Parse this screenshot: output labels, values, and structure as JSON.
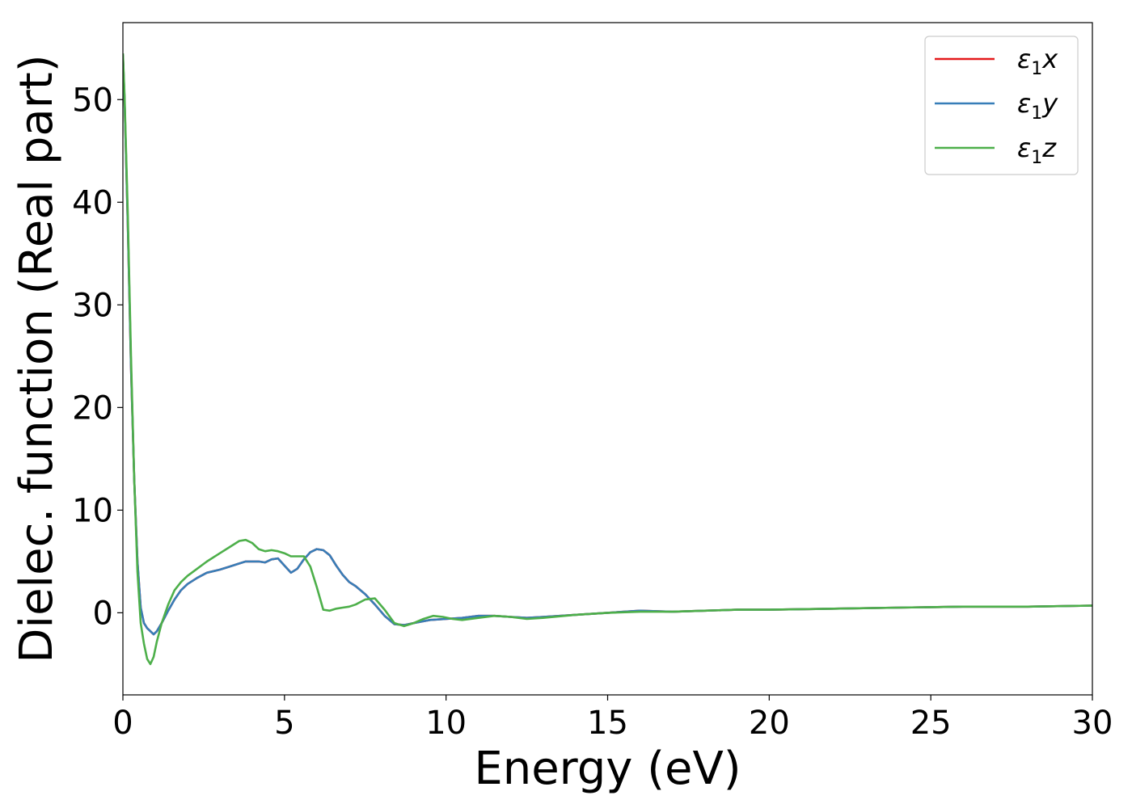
{
  "chart_data": {
    "type": "line",
    "xlabel": "Energy (eV)",
    "ylabel": "Dielec. function (Real part)",
    "xlim": [
      0,
      30
    ],
    "ylim": [
      -8,
      57.5
    ],
    "xticks": [
      0,
      5,
      10,
      15,
      20,
      25,
      30
    ],
    "yticks": [
      0,
      10,
      20,
      30,
      40,
      50
    ],
    "legend_position": "top-right",
    "grid": false,
    "series": [
      {
        "name": "ε1x",
        "label_main": "ε",
        "label_sub": "1",
        "label_end": "x",
        "color": "#e41a1c",
        "x": [
          0,
          0.05,
          0.15,
          0.25,
          0.35,
          0.45,
          0.55,
          0.65,
          0.75,
          0.85,
          0.95,
          1.05,
          1.2,
          1.4,
          1.6,
          1.8,
          2.0,
          2.3,
          2.6,
          3.0,
          3.3,
          3.6,
          3.8,
          4.0,
          4.2,
          4.4,
          4.6,
          4.8,
          5.0,
          5.2,
          5.4,
          5.6,
          5.8,
          6.0,
          6.2,
          6.4,
          6.6,
          6.8,
          7.0,
          7.2,
          7.5,
          7.8,
          8.1,
          8.4,
          8.7,
          9.0,
          9.5,
          10.0,
          10.5,
          11.0,
          11.5,
          12.0,
          12.5,
          13.0,
          14.0,
          15.0,
          16.0,
          17.0,
          18.0,
          19.0,
          20.0,
          22.0,
          24.0,
          26.0,
          28.0,
          30.0
        ],
        "values": [
          54.3,
          50.0,
          38.0,
          24.0,
          13.0,
          5.0,
          0.5,
          -1.0,
          -1.5,
          -1.8,
          -2.1,
          -1.8,
          -1.0,
          0.2,
          1.3,
          2.2,
          2.8,
          3.4,
          3.9,
          4.2,
          4.5,
          4.8,
          5.0,
          5.0,
          5.0,
          4.9,
          5.2,
          5.3,
          4.6,
          3.9,
          4.3,
          5.2,
          5.9,
          6.2,
          6.1,
          5.6,
          4.6,
          3.7,
          3.0,
          2.6,
          1.8,
          0.8,
          -0.3,
          -1.1,
          -1.2,
          -1.0,
          -0.7,
          -0.6,
          -0.5,
          -0.3,
          -0.3,
          -0.4,
          -0.5,
          -0.4,
          -0.2,
          0.0,
          0.2,
          0.1,
          0.2,
          0.3,
          0.3,
          0.4,
          0.5,
          0.6,
          0.6,
          0.7
        ]
      },
      {
        "name": "ε1y",
        "label_main": "ε",
        "label_sub": "1",
        "label_end": "y",
        "color": "#377eb8",
        "x": [
          0,
          0.05,
          0.15,
          0.25,
          0.35,
          0.45,
          0.55,
          0.65,
          0.75,
          0.85,
          0.95,
          1.05,
          1.2,
          1.4,
          1.6,
          1.8,
          2.0,
          2.3,
          2.6,
          3.0,
          3.3,
          3.6,
          3.8,
          4.0,
          4.2,
          4.4,
          4.6,
          4.8,
          5.0,
          5.2,
          5.4,
          5.6,
          5.8,
          6.0,
          6.2,
          6.4,
          6.6,
          6.8,
          7.0,
          7.2,
          7.5,
          7.8,
          8.1,
          8.4,
          8.7,
          9.0,
          9.5,
          10.0,
          10.5,
          11.0,
          11.5,
          12.0,
          12.5,
          13.0,
          14.0,
          15.0,
          16.0,
          17.0,
          18.0,
          19.0,
          20.0,
          22.0,
          24.0,
          26.0,
          28.0,
          30.0
        ],
        "values": [
          54.3,
          50.0,
          38.0,
          24.0,
          13.0,
          5.0,
          0.5,
          -1.0,
          -1.5,
          -1.8,
          -2.1,
          -1.8,
          -1.0,
          0.2,
          1.3,
          2.2,
          2.8,
          3.4,
          3.9,
          4.2,
          4.5,
          4.8,
          5.0,
          5.0,
          5.0,
          4.9,
          5.2,
          5.3,
          4.6,
          3.9,
          4.3,
          5.2,
          5.9,
          6.2,
          6.1,
          5.6,
          4.6,
          3.7,
          3.0,
          2.6,
          1.8,
          0.8,
          -0.3,
          -1.1,
          -1.2,
          -1.0,
          -0.7,
          -0.6,
          -0.5,
          -0.3,
          -0.3,
          -0.4,
          -0.5,
          -0.4,
          -0.2,
          0.0,
          0.2,
          0.1,
          0.2,
          0.3,
          0.3,
          0.4,
          0.5,
          0.6,
          0.6,
          0.7
        ]
      },
      {
        "name": "ε1z",
        "label_main": "ε",
        "label_sub": "1",
        "label_end": "z",
        "color": "#4daf4a",
        "x": [
          0,
          0.05,
          0.15,
          0.25,
          0.35,
          0.45,
          0.55,
          0.65,
          0.75,
          0.85,
          0.95,
          1.05,
          1.2,
          1.4,
          1.6,
          1.8,
          2.0,
          2.3,
          2.6,
          3.0,
          3.3,
          3.6,
          3.8,
          4.0,
          4.2,
          4.4,
          4.6,
          4.8,
          5.0,
          5.2,
          5.4,
          5.6,
          5.8,
          6.0,
          6.2,
          6.4,
          6.6,
          6.8,
          7.0,
          7.2,
          7.5,
          7.8,
          8.1,
          8.4,
          8.7,
          9.0,
          9.3,
          9.6,
          9.9,
          10.2,
          10.5,
          11.0,
          11.5,
          12.0,
          12.5,
          13.0,
          14.0,
          15.0,
          16.0,
          17.0,
          18.0,
          19.0,
          20.0,
          22.0,
          24.0,
          26.0,
          28.0,
          30.0
        ],
        "values": [
          54.5,
          50.5,
          39.0,
          25.0,
          13.0,
          4.0,
          -1.0,
          -3.0,
          -4.5,
          -5.0,
          -4.3,
          -2.8,
          -1.0,
          0.8,
          2.2,
          3.0,
          3.6,
          4.3,
          5.0,
          5.8,
          6.4,
          7.0,
          7.1,
          6.8,
          6.2,
          6.0,
          6.1,
          6.0,
          5.8,
          5.5,
          5.5,
          5.5,
          4.5,
          2.5,
          0.3,
          0.2,
          0.4,
          0.5,
          0.6,
          0.8,
          1.3,
          1.4,
          0.3,
          -1.0,
          -1.3,
          -1.0,
          -0.6,
          -0.3,
          -0.4,
          -0.6,
          -0.7,
          -0.5,
          -0.3,
          -0.4,
          -0.6,
          -0.5,
          -0.2,
          0.0,
          0.1,
          0.1,
          0.2,
          0.3,
          0.3,
          0.4,
          0.5,
          0.6,
          0.6,
          0.7
        ]
      }
    ]
  }
}
